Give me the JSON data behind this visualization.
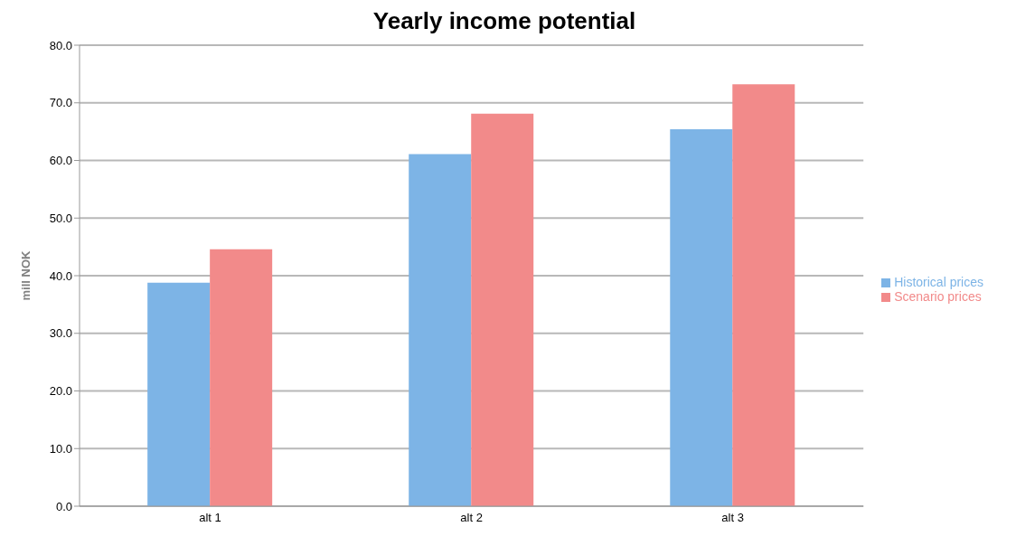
{
  "chart_data": {
    "type": "bar",
    "title": "Yearly income potential",
    "ylabel": "mill NOK",
    "categories": [
      "alt 1",
      "alt 2",
      "alt 3"
    ],
    "series": [
      {
        "name": "Historical prices",
        "color": "#7db4e6",
        "values": [
          38.8,
          61.1,
          65.4
        ]
      },
      {
        "name": "Scenario prices",
        "color": "#f28a8a",
        "values": [
          44.6,
          68.1,
          73.2
        ]
      }
    ],
    "ylim": [
      0,
      80
    ],
    "yticks": [
      {
        "value": 0,
        "label": "0.0"
      },
      {
        "value": 10,
        "label": "10.0"
      },
      {
        "value": 20,
        "label": "20.0"
      },
      {
        "value": 30,
        "label": "30.0"
      },
      {
        "value": 40,
        "label": "40.0"
      },
      {
        "value": 50,
        "label": "50.0"
      },
      {
        "value": 60,
        "label": "60.0"
      },
      {
        "value": 70,
        "label": "70.0"
      },
      {
        "value": 80,
        "label": "80.0"
      }
    ],
    "grid": "y",
    "legend": "right"
  }
}
